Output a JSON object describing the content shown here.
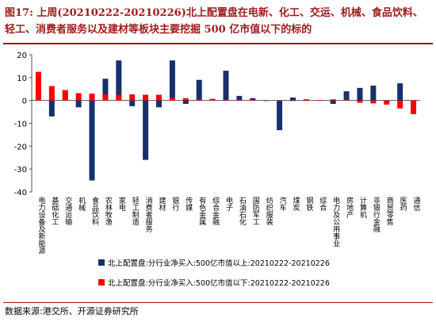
{
  "title": {
    "label": "图17:",
    "text": "上周(20210222-20210226)北上配置盘在电新、化工、交运、机械、食品饮料、轻工、消费者服务以及建材等板块主要挖掘 500 亿市值以下的标的"
  },
  "source": "数据来源:港交所、开源证券研究所",
  "colors": {
    "series_large": "#17306b",
    "series_small": "#ff0000",
    "accent": "#9e1a1a"
  },
  "chart_data": {
    "type": "bar",
    "categories": [
      "电力设备及新能源",
      "基础化工",
      "交通运输",
      "机械",
      "食品饮料",
      "农林牧渔",
      "家电",
      "轻工制造",
      "消费者服务",
      "建材",
      "银行",
      "传媒",
      "有色金属",
      "综合金融",
      "电子",
      "石油石化",
      "国防军工",
      "纺织服装",
      "汽车",
      "煤炭",
      "钢铁",
      "综合",
      "电力及公用事业",
      "房地产",
      "计算机",
      "非银行金融",
      "商贸零售",
      "医药",
      "通信"
    ],
    "series": [
      {
        "name": "北上配置盘:分行业净买入:500亿市值以上:20210222-20210226",
        "values": [
          5.5,
          -7,
          4.5,
          -3,
          -35,
          9.5,
          17.5,
          -2.5,
          -26,
          -3,
          17.5,
          -1.5,
          9,
          0.5,
          13,
          2,
          1,
          0,
          -13,
          1.3,
          0.5,
          0.2,
          -1.5,
          4,
          5.5,
          6.5,
          -1,
          7.5,
          -1.5
        ]
      },
      {
        "name": "北上配置盘:分行业净买入:500亿市值以下:20210222-20210226",
        "values": [
          12.5,
          6.3,
          4.5,
          3.2,
          3,
          2.7,
          2.5,
          2.7,
          2.5,
          2.5,
          1.2,
          1,
          0.5,
          0.7,
          0.3,
          0.2,
          0.3,
          0,
          0,
          0,
          0.3,
          0.2,
          0.5,
          0.5,
          -1,
          -1.3,
          -1.8,
          -3.5,
          -6
        ]
      }
    ],
    "ylim": [
      -40,
      20
    ],
    "yticks": [
      20,
      10,
      0,
      -10,
      -20,
      -30,
      -40
    ],
    "grid": false,
    "legend": "bottom-left"
  }
}
